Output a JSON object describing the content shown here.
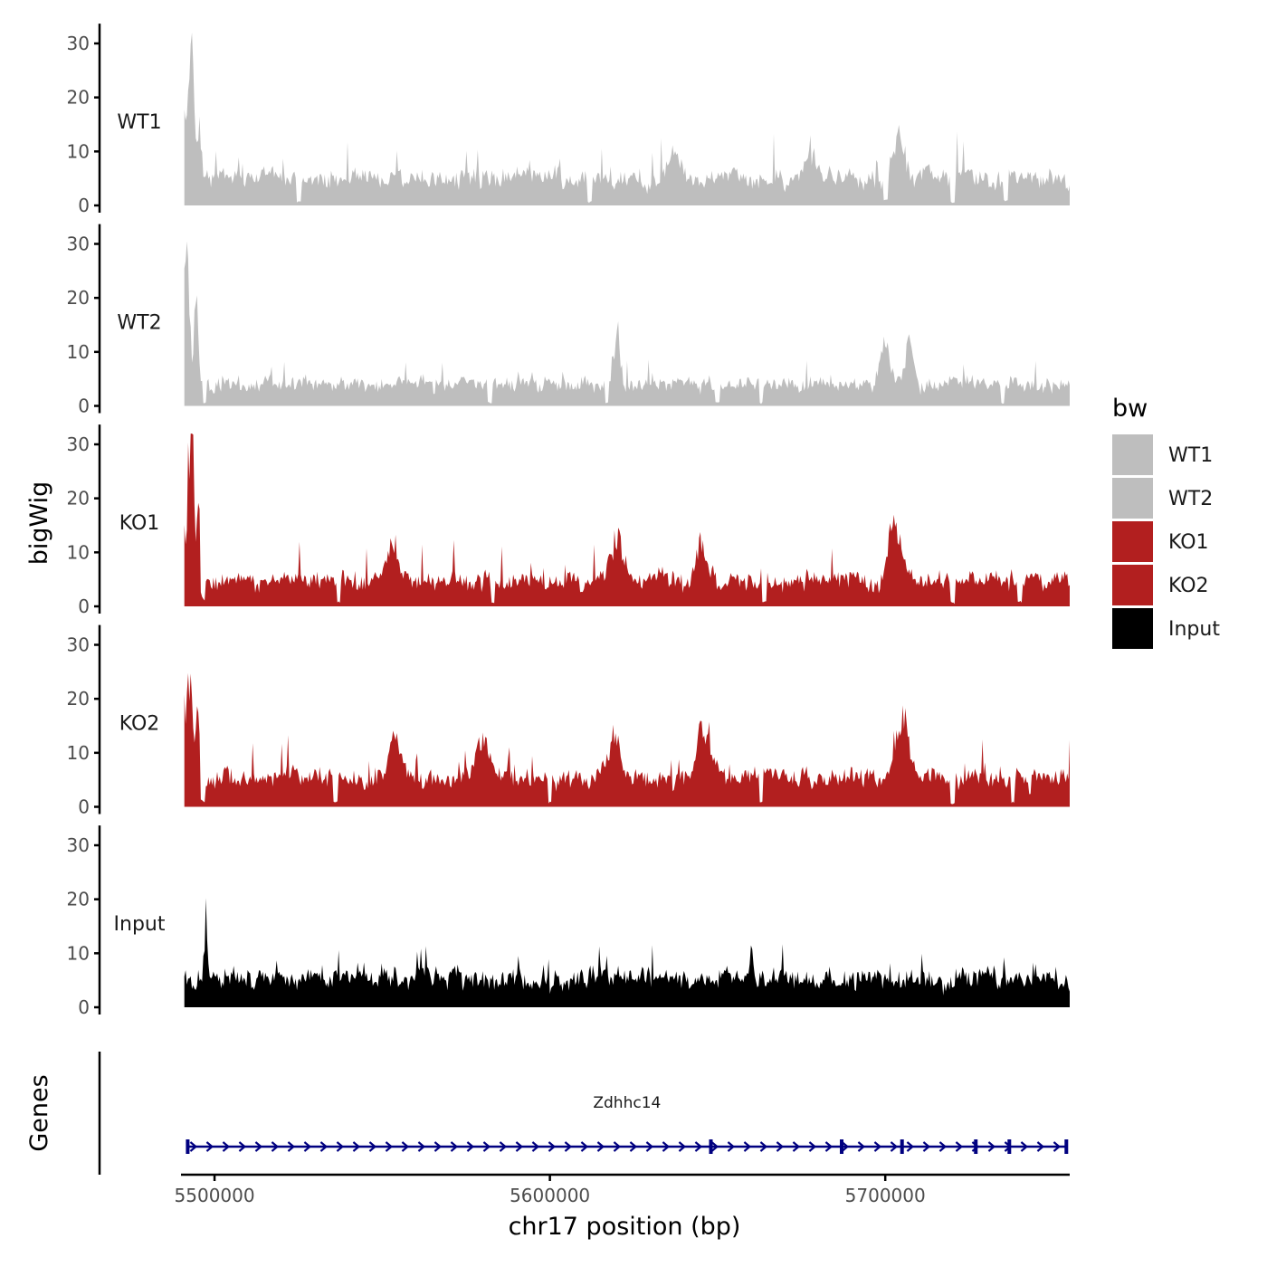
{
  "chart_data": {
    "type": "area",
    "xlabel": "chr17 position (bp)",
    "ylabel": "bigWig",
    "genes_label": "Genes",
    "xlim": [
      5490000,
      5755000
    ],
    "xticks": [
      5500000,
      5600000,
      5700000
    ],
    "ylim": [
      0,
      33
    ],
    "yticks": [
      0,
      10,
      20,
      30
    ],
    "grid": false,
    "legend": {
      "title": "bw",
      "placement": "right",
      "entries": [
        {
          "label": "WT1",
          "color": "#bebebe"
        },
        {
          "label": "WT2",
          "color": "#bebebe"
        },
        {
          "label": "KO1",
          "color": "#b21f1f"
        },
        {
          "label": "KO2",
          "color": "#b21f1f"
        },
        {
          "label": "Input",
          "color": "#000000"
        }
      ]
    },
    "tracks": [
      {
        "name": "WT1",
        "color": "#bebebe",
        "baseline": 4.5,
        "noise": 2.6,
        "spike_rate": 0.04,
        "spike_max": 7,
        "seed": 11,
        "peaks": [
          {
            "x": 5490500,
            "h": 22,
            "w": 900
          },
          {
            "x": 5493000,
            "h": 28,
            "w": 1100
          },
          {
            "x": 5495500,
            "h": 9,
            "w": 900
          },
          {
            "x": 5637000,
            "h": 5,
            "w": 2500
          },
          {
            "x": 5678000,
            "h": 5,
            "w": 2500
          },
          {
            "x": 5704000,
            "h": 8,
            "w": 2500
          }
        ],
        "dips": [
          5525000,
          5612000,
          5700000,
          5720000,
          5736000
        ]
      },
      {
        "name": "WT2",
        "color": "#bebebe",
        "baseline": 3.8,
        "noise": 2.2,
        "spike_rate": 0.035,
        "spike_max": 6,
        "seed": 23,
        "peaks": [
          {
            "x": 5490500,
            "h": 17,
            "w": 900
          },
          {
            "x": 5492000,
            "h": 23,
            "w": 1000
          },
          {
            "x": 5494500,
            "h": 15,
            "w": 900
          },
          {
            "x": 5620000,
            "h": 9,
            "w": 1200
          },
          {
            "x": 5700000,
            "h": 7,
            "w": 2000
          },
          {
            "x": 5707000,
            "h": 8,
            "w": 1500
          }
        ],
        "dips": [
          5497000,
          5582000,
          5617000,
          5650000,
          5663000,
          5735000
        ]
      },
      {
        "name": "KO1",
        "color": "#b21f1f",
        "baseline": 4.5,
        "noise": 2.6,
        "spike_rate": 0.04,
        "spike_max": 7,
        "seed": 37,
        "peaks": [
          {
            "x": 5490500,
            "h": 19,
            "w": 700
          },
          {
            "x": 5493000,
            "h": 30,
            "w": 1200
          },
          {
            "x": 5495500,
            "h": 13,
            "w": 800
          },
          {
            "x": 5553000,
            "h": 7,
            "w": 2000
          },
          {
            "x": 5620000,
            "h": 8,
            "w": 2500
          },
          {
            "x": 5645000,
            "h": 7,
            "w": 2000
          },
          {
            "x": 5703000,
            "h": 10,
            "w": 2500
          }
        ],
        "dips": [
          5496500,
          5537000,
          5583000,
          5664000,
          5720000,
          5740000
        ]
      },
      {
        "name": "KO2",
        "color": "#b21f1f",
        "baseline": 5.0,
        "noise": 2.7,
        "spike_rate": 0.04,
        "spike_max": 7,
        "seed": 53,
        "peaks": [
          {
            "x": 5490500,
            "h": 17,
            "w": 800
          },
          {
            "x": 5492500,
            "h": 20,
            "w": 1200
          },
          {
            "x": 5495000,
            "h": 13,
            "w": 800
          },
          {
            "x": 5554000,
            "h": 7,
            "w": 2500
          },
          {
            "x": 5580000,
            "h": 6,
            "w": 3000
          },
          {
            "x": 5619000,
            "h": 7,
            "w": 2500
          },
          {
            "x": 5646000,
            "h": 10,
            "w": 2500
          },
          {
            "x": 5705000,
            "h": 11,
            "w": 3000
          }
        ],
        "dips": [
          5496500,
          5536000,
          5600000,
          5663000,
          5720000,
          5738000
        ]
      },
      {
        "name": "Input",
        "color": "#000000",
        "baseline": 5.0,
        "noise": 3.0,
        "spike_rate": 0.045,
        "spike_max": 6,
        "seed": 71,
        "peaks": [
          {
            "x": 5497500,
            "h": 15,
            "w": 500
          },
          {
            "x": 5660000,
            "h": 6,
            "w": 600
          }
        ],
        "dips": []
      }
    ],
    "gene": {
      "name": "Zdhhc14",
      "start": 5492000,
      "end": 5754000,
      "strand": "+",
      "color": "#000080",
      "exons": [
        5492000,
        5648000,
        5687000,
        5705000,
        5727000,
        5737000,
        5754000
      ]
    }
  }
}
